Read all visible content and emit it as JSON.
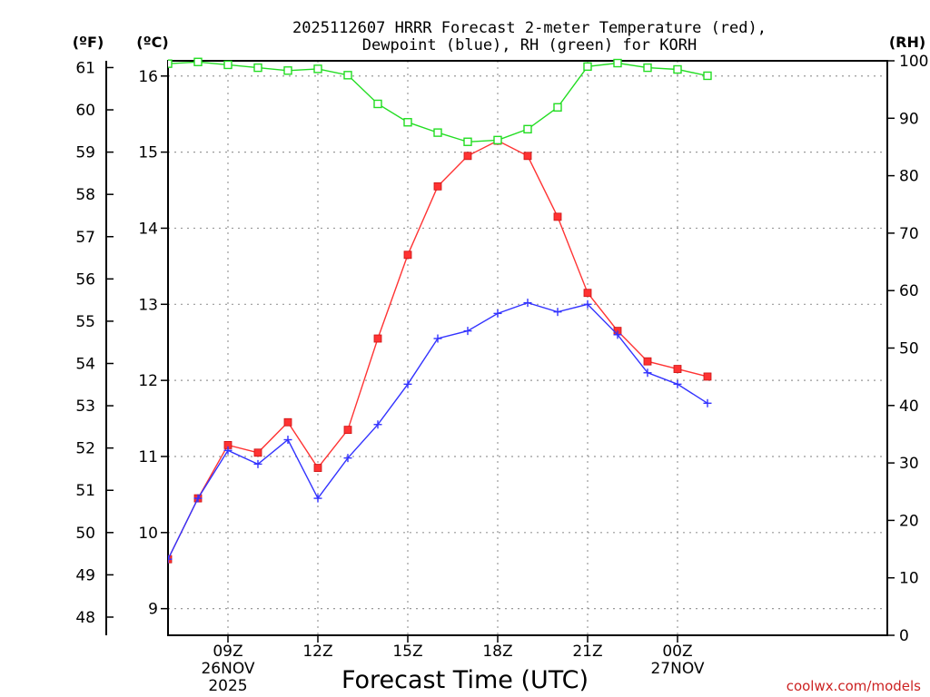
{
  "chart_data": {
    "type": "line",
    "title_line1": "2025112607 HRRR Forecast 2-meter Temperature (red),",
    "title_line2": "Dewpoint (blue), RH (green) for KORH",
    "axis_units": {
      "fahrenheit": "(ºF)",
      "celsius": "(ºC)",
      "rh": "(RH)"
    },
    "xlabel": "Forecast Time (UTC)",
    "credit": "coolwx.com/models",
    "x_range_hours": [
      7,
      31
    ],
    "x_ticks": [
      {
        "hour": 9,
        "label": "09Z",
        "date": "26NOV",
        "year": "2025"
      },
      {
        "hour": 12,
        "label": "12Z",
        "date": "",
        "year": ""
      },
      {
        "hour": 15,
        "label": "15Z",
        "date": "",
        "year": ""
      },
      {
        "hour": 18,
        "label": "18Z",
        "date": "",
        "year": ""
      },
      {
        "hour": 21,
        "label": "21Z",
        "date": "",
        "year": ""
      },
      {
        "hour": 24,
        "label": "00Z",
        "date": "27NOV",
        "year": ""
      }
    ],
    "celsius_range": [
      8.65,
      16.2
    ],
    "celsius_ticks": [
      9,
      10,
      11,
      12,
      13,
      14,
      15,
      16
    ],
    "fahrenheit_ticks": [
      48,
      49,
      50,
      51,
      52,
      53,
      54,
      55,
      56,
      57,
      58,
      59,
      60,
      61
    ],
    "rh_range": [
      0,
      100
    ],
    "rh_ticks": [
      0,
      10,
      20,
      30,
      40,
      50,
      60,
      70,
      80,
      90,
      100
    ],
    "hours": [
      7,
      8,
      9,
      10,
      11,
      12,
      13,
      14,
      15,
      16,
      17,
      18,
      19,
      20,
      21,
      22,
      23,
      24,
      25
    ],
    "series": [
      {
        "name": "Temperature",
        "color": "#ff3333",
        "marker": "filled-square",
        "unit": "C",
        "values": [
          9.65,
          10.45,
          11.15,
          11.05,
          11.45,
          10.85,
          11.35,
          12.55,
          13.65,
          14.55,
          14.95,
          15.15,
          14.95,
          14.15,
          13.15,
          12.65,
          12.25,
          12.15,
          12.05
        ]
      },
      {
        "name": "Dewpoint",
        "color": "#3333ff",
        "marker": "plus",
        "unit": "C",
        "values": [
          9.65,
          10.45,
          11.08,
          10.9,
          11.22,
          10.45,
          10.98,
          11.42,
          11.95,
          12.55,
          12.65,
          12.88,
          13.02,
          12.9,
          13.0,
          12.6,
          12.1,
          11.95,
          11.7
        ]
      },
      {
        "name": "RH",
        "color": "#22dd22",
        "marker": "open-square",
        "unit": "%",
        "values": [
          99.5,
          99.8,
          99.3,
          98.8,
          98.3,
          98.6,
          97.5,
          92.5,
          89.3,
          87.5,
          85.9,
          86.2,
          88.1,
          91.9,
          99.0,
          99.6,
          98.8,
          98.5,
          97.4
        ]
      }
    ]
  }
}
